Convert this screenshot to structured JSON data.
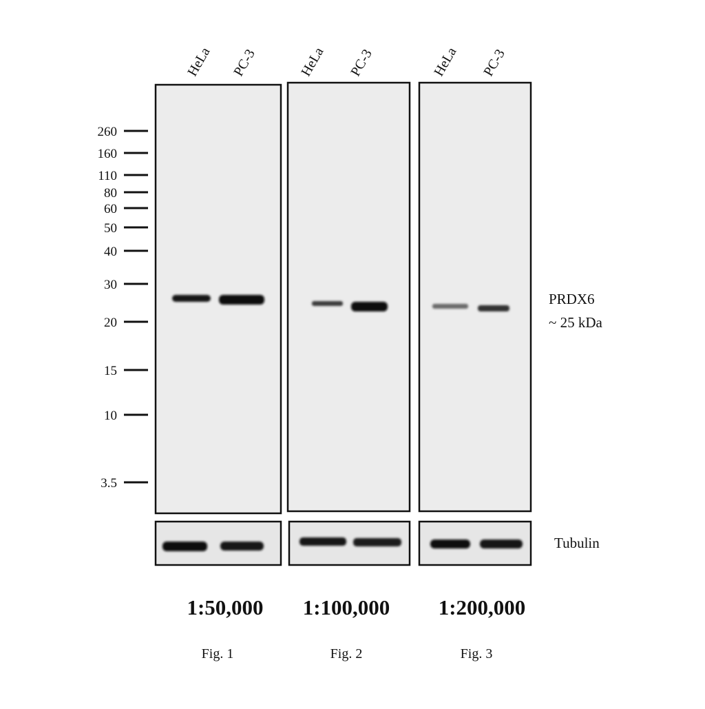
{
  "panels": [
    {
      "lanes": [
        "HeLa",
        "PC-3"
      ],
      "dilution": "1:50,000",
      "figure": "Fig. 1"
    },
    {
      "lanes": [
        "HeLa",
        "PC-3"
      ],
      "dilution": "1:100,000",
      "figure": "Fig. 2"
    },
    {
      "lanes": [
        "HeLa",
        "PC-3"
      ],
      "dilution": "1:200,000",
      "figure": "Fig. 3"
    }
  ],
  "markers": [
    "260",
    "160",
    "110",
    "80",
    "60",
    "50",
    "40",
    "30",
    "20",
    "15",
    "10",
    "3.5"
  ],
  "band_label": {
    "protein": "PRDX6",
    "size": "~ 25 kDa"
  },
  "loading_control": "Tubulin"
}
